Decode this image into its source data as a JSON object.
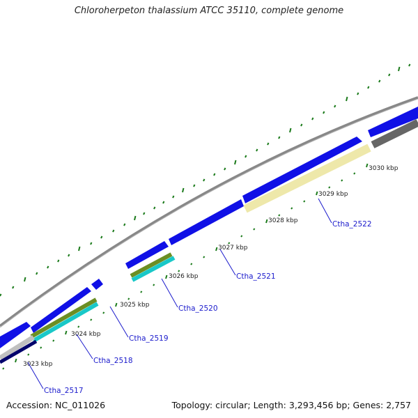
{
  "title": "Chloroherpeton thalassium ATCC 35110, complete genome",
  "accession": "Accession: NC_011026",
  "summary": "Topology: circular; Length: 3,293,456 bp; Genes: 2,757",
  "colors": {
    "backbone": "#888888",
    "cds_blue": "#1010e6",
    "olive": "#6b8e23",
    "teal": "#19c8c8",
    "pale_yellow": "#eee8aa",
    "dark_gray": "#666666",
    "light_gray": "#c0c0c0",
    "navy": "#00006b",
    "tick_green": "#1a7a1a",
    "label_blue": "#1a1acc"
  },
  "scale_labels": [
    "3023 kbp",
    "3024 kbp",
    "3025 kbp",
    "3026 kbp",
    "3027 kbp",
    "3028 kbp",
    "3029 kbp",
    "3030 kbp"
  ],
  "gene_labels": [
    "Ctha_2517",
    "Ctha_2518",
    "Ctha_2519",
    "Ctha_2520",
    "Ctha_2521",
    "Ctha_2522"
  ]
}
